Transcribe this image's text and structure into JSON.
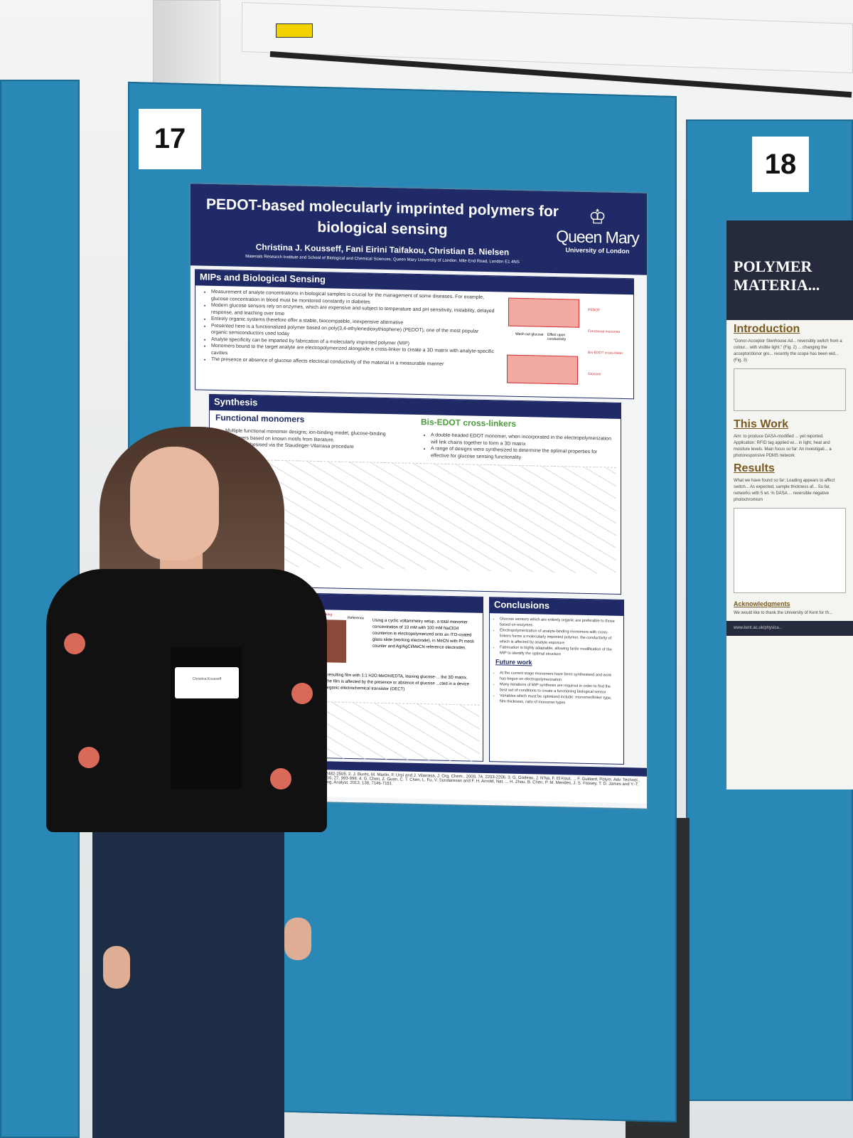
{
  "scene": {
    "board_left_number": "17",
    "board_right_number": "18",
    "board_color": "#2a88b6",
    "poster_header_color": "#1f2a66"
  },
  "poster17": {
    "title": "PEDOT-based molecularly imprinted polymers for biological sensing",
    "authors": "Christina J. Kousseff, Fani Eirini Taifakou, Christian B. Nielsen",
    "affiliation": "Materials Research Institute and School of Biological and Chemical Sciences, Queen Mary University of London, Mile End Road, London E1 4NS",
    "logo": {
      "name": "Queen Mary",
      "sub": "University of London"
    },
    "mips": {
      "heading": "MIPs and Biological Sensing",
      "bullets": [
        "Measurement of analyte concentrations in biological samples is crucial for the management of some diseases. For example, glucose concentration in blood must be monitored constantly in diabetes",
        "Modern glucose sensors rely on enzymes, which are expensive and subject to temperature and pH sensitivity, instability, delayed response, and leaching over time",
        "Entirely organic systems therefore offer a stable, biocompatible, inexpensive alternative",
        "Presented here is a functionalized polymer based on poly(3,4-ethylenedioxythiophene) (PEDOT), one of the most popular organic semiconductors used today",
        "Analyte specificity can be imparted by fabrication of a molecularly imprinted polymer (MIP)",
        "Monomers bound to the target analyte are electropolymerized alongside a cross-linker to create a 3D matrix with analyte-specific cavities",
        "The presence or absence of glucose affects electrical conductivity of the material in a measurable manner"
      ],
      "legend": [
        "PEDOT",
        "Functional monomer",
        "Bis-EDOT cross-linker",
        "Glucose"
      ],
      "diagram_labels": [
        "Wash out glucose",
        "Effect upon conductivity"
      ]
    },
    "synthesis": {
      "heading": "Synthesis",
      "left_title": "Functional monomers",
      "left_bullets": [
        "Multiple functional monomer designs; ion-binding model, glucose-binding monomers based on known motifs from literature.",
        "Mostly synthesised via the Staudinger-Vilarrasa procedure"
      ],
      "right_title": "Bis-EDOT cross-linkers",
      "right_bullets": [
        "A double-headed EDOT monomer, when incorporated in the electropolymerization will link chains together to form a 3D matrix",
        "A range of designs were synthesized to determine the optimal properties for effective for glucose sensing functionality"
      ]
    },
    "method": {
      "photo_labels": [
        "Working",
        "Reference"
      ],
      "text": "Using a cyclic voltammetry setup, a total monomer concentration of 10 mM with 100 mM NaClO4 counterion is electropolymerized onto an ITO-coated glass slide (working electrode), in MeCN with Pt mesh counter and Ag/AgCl/MeCN reference electrodes.",
      "text2": "...d from the resulting film with 1:1 H2O:MeOH/EDTA, leaving glucose-... the 3D matrix. ...uctivity of the film is affected by the presence or absence of glucose ...cted in a device such as an organic electrochemical transistor (OECT)"
    },
    "conclusions": {
      "heading": "Conclusions",
      "bullets": [
        "Glucose sensors which are entirely organic are preferable to those based on enzymes",
        "Electropolymerization of analyte-binding monomers with cross-linkers forms a molecularly imprinted polymer, the conductivity of which is affected by analyte exposure",
        "Fabrication is highly adaptable, allowing facile modification of the MIP to identify the optimal structure"
      ]
    },
    "future": {
      "heading": "Future work",
      "bullets": [
        "At the current stage monomers have been synthesised and work has begun on electropolymerization",
        "Many iterations of MIP synthesis are required in order to find the best set of conditions to create a functioning biological sensor",
        "Variables which must be optimized include: monomer/linker type, film thickness, ratio of monomer types"
      ]
    },
    "references": "...2482-2505. 2. J. Burés, M. Martín, F. Urpí and J. Vilarrasa, J. Org. Chem., 2009, 74, 2203-2206. 3. G. Godeau, J. N'Na, F. El Kout, ... F. Guittard, Polym. Adv. Technol., 2016, 27, 993-998. 4. G. Chen, Z. Guan, C. T. Chen, L. Fu, V. Sundaresan and F. H. Arnold, Nat. ... H. Zhou, B. Chen, P. M. Mendes, J. S. Fossey, T. D. James and Y.-T. Long, Analyst, 2013, 138, 7146-7151."
  },
  "poster18": {
    "title": "POLYMER MATERIA...",
    "sections": [
      {
        "heading": "Introduction",
        "text": "\"Donor-Acceptor Stenhouse Ad... reversibly switch from a colour... with visible light.\" (Fig. 2) ... changing the acceptor/donor gro... recently the scope has been wid... (Fig. 3)"
      },
      {
        "heading": "This Work",
        "text": "Aim: to produce DASA-modified ... yet reported. Application: RFID tag applied wi... in light, heat and moisture levels. Main focus so far: An investigati... a photoresponsive PDMS network"
      },
      {
        "heading": "Results",
        "text": "What we have found so far: Loading appears to affect switch... As expected, sample thickness af... So far, networks with 5 wt. % DASA ... reversible negative photochromism"
      },
      {
        "heading": "Acknowledgments",
        "text": "We would like to thank the University of Kent for th..."
      }
    ],
    "footer": "www.kent.ac.uk/physica..."
  },
  "badge": "Christina Kousseff"
}
